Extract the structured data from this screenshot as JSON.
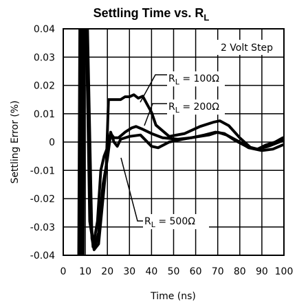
{
  "chart_data": {
    "type": "line",
    "title_main": "Settling Time vs. R",
    "title_sub": "L",
    "xlabel": "Time (ns)",
    "ylabel": "Settling Error (%)",
    "xlim": [
      0,
      100
    ],
    "ylim": [
      -0.04,
      0.04
    ],
    "grid": true,
    "x_ticks": [
      "0",
      "10",
      "20",
      "30",
      "40",
      "50",
      "60",
      "70",
      "80",
      "90",
      "100"
    ],
    "y_ticks": [
      "-0.04",
      "-0.03",
      "-0.02",
      "-0.01",
      "0",
      "0.01",
      "0.02",
      "0.03",
      "0.04"
    ],
    "annotation_step": "2 Volt Step",
    "series": [
      {
        "label_prefix": "R",
        "label_sub": "L",
        "label_value": " = 100Ω",
        "points": [
          [
            7,
            -0.04
          ],
          [
            7.5,
            0.04
          ],
          [
            11,
            0.04
          ],
          [
            13,
            -0.034
          ],
          [
            14,
            -0.038
          ],
          [
            16,
            -0.036
          ],
          [
            18,
            -0.02
          ],
          [
            19.5,
            -0.008
          ],
          [
            20.5,
            0.015
          ],
          [
            22,
            0.015
          ],
          [
            26,
            0.015
          ],
          [
            28,
            0.016
          ],
          [
            30,
            0.016
          ],
          [
            32,
            0.0167
          ],
          [
            34,
            0.0155
          ],
          [
            36,
            0.0162
          ],
          [
            38,
            0.0133
          ],
          [
            40,
            0.0105
          ],
          [
            42,
            0.006
          ],
          [
            48,
            0.002
          ],
          [
            55,
            0.003
          ],
          [
            62,
            0.0055
          ],
          [
            68,
            0.007
          ],
          [
            71,
            0.0075
          ],
          [
            75,
            0.0058
          ],
          [
            80,
            0.0015
          ],
          [
            85,
            -0.002
          ],
          [
            88,
            -0.0025
          ],
          [
            92,
            -0.001
          ],
          [
            96,
            0.0
          ],
          [
            99.5,
            0.0015
          ]
        ]
      },
      {
        "label_prefix": "R",
        "label_sub": "L",
        "label_value": " = 200Ω",
        "points": [
          [
            8,
            -0.04
          ],
          [
            8.5,
            0.04
          ],
          [
            10.5,
            0.04
          ],
          [
            12,
            -0.028
          ],
          [
            14,
            -0.038
          ],
          [
            16,
            -0.032
          ],
          [
            18,
            -0.015
          ],
          [
            20,
            -0.006
          ],
          [
            21.5,
            0.003
          ],
          [
            23,
            0.0015
          ],
          [
            25,
            0.0015
          ],
          [
            28,
            0.0035
          ],
          [
            31,
            0.005
          ],
          [
            33,
            0.0055
          ],
          [
            36,
            0.0045
          ],
          [
            40,
            0.003
          ],
          [
            45,
            0.0015
          ],
          [
            52,
            0.001
          ],
          [
            58,
            0.0015
          ],
          [
            64,
            0.0025
          ],
          [
            69,
            0.0035
          ],
          [
            73,
            0.003
          ],
          [
            78,
            0.0005
          ],
          [
            83,
            -0.0015
          ],
          [
            88,
            -0.0025
          ],
          [
            93,
            -0.0015
          ],
          [
            99.5,
            0.0005
          ]
        ]
      },
      {
        "label_prefix": "R",
        "label_sub": "L",
        "label_value": " = 500Ω",
        "points": [
          [
            9,
            -0.04
          ],
          [
            9.5,
            0.04
          ],
          [
            10.5,
            0.04
          ],
          [
            12,
            -0.02
          ],
          [
            13.5,
            -0.037
          ],
          [
            15.5,
            -0.028
          ],
          [
            17,
            -0.01
          ],
          [
            18.5,
            -0.005
          ],
          [
            20,
            -0.002
          ],
          [
            21.5,
            0.0035
          ],
          [
            23,
            0.0
          ],
          [
            24.5,
            -0.0015
          ],
          [
            26,
            0.001
          ],
          [
            30,
            0.002
          ],
          [
            35,
            0.0025
          ],
          [
            40,
            -0.0015
          ],
          [
            43,
            -0.002
          ],
          [
            48,
            0.0
          ],
          [
            54,
            0.001
          ],
          [
            60,
            0.0018
          ],
          [
            66,
            0.0025
          ],
          [
            70,
            0.0035
          ],
          [
            74,
            0.0025
          ],
          [
            80,
            0.0
          ],
          [
            84,
            -0.002
          ],
          [
            90,
            -0.003
          ],
          [
            95,
            -0.0025
          ],
          [
            99.5,
            -0.001
          ]
        ]
      }
    ]
  }
}
